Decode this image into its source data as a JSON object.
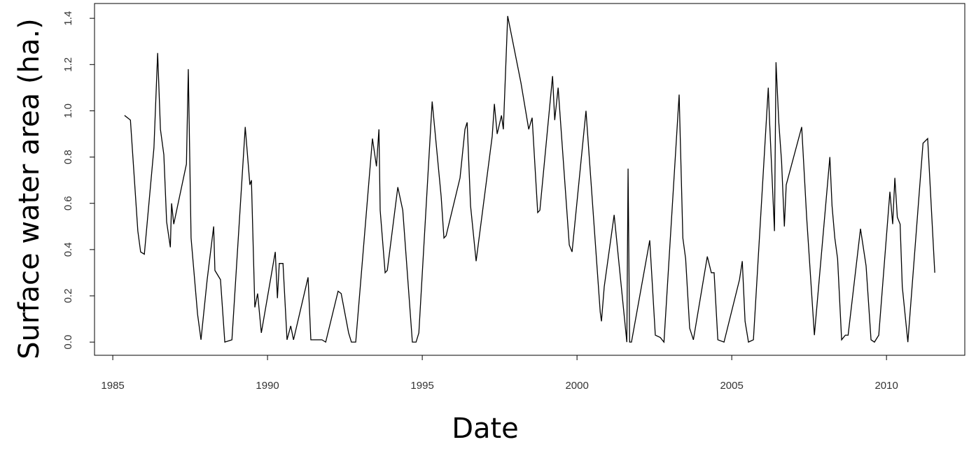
{
  "chart_data": {
    "type": "line",
    "x_label": "Date",
    "y_label": "Surface water area (ha.)",
    "xlim": [
      1984.41,
      2012.53
    ],
    "ylim": [
      -0.057,
      1.464
    ],
    "xticks": [
      1985,
      1990,
      1995,
      2000,
      2005,
      2010
    ],
    "yticks": [
      {
        "value": 0,
        "label": "0.0"
      },
      0.2,
      0.4,
      0.6,
      0.8,
      {
        "value": 1,
        "label": "1.0"
      },
      1.2,
      1.4
    ],
    "series": [
      {
        "color": "#000000",
        "x": [
          1985.38,
          1985.57,
          1985.81,
          1985.9,
          1986.02,
          1986.33,
          1986.45,
          1986.54,
          1986.65,
          1986.74,
          1986.86,
          1986.9,
          1986.97,
          1987.38,
          1987.44,
          1987.53,
          1987.74,
          1987.85,
          1988.05,
          1988.26,
          1988.3,
          1988.48,
          1988.62,
          1988.85,
          1989.28,
          1989.43,
          1989.48,
          1989.59,
          1989.68,
          1989.8,
          1990.25,
          1990.32,
          1990.38,
          1990.5,
          1990.63,
          1990.75,
          1990.84,
          1991.31,
          1991.4,
          1991.76,
          1991.88,
          1992.28,
          1992.38,
          1992.62,
          1992.71,
          1992.85,
          1993.39,
          1993.52,
          1993.6,
          1993.64,
          1993.8,
          1993.87,
          1994.21,
          1994.37,
          1994.68,
          1994.8,
          1994.89,
          1995.32,
          1995.61,
          1995.7,
          1995.77,
          1996.22,
          1996.38,
          1996.45,
          1996.56,
          1996.74,
          1997.26,
          1997.33,
          1997.42,
          1997.56,
          1997.62,
          1997.76,
          1998.19,
          1998.44,
          1998.55,
          1998.73,
          1998.8,
          1999.21,
          1999.28,
          1999.39,
          1999.75,
          1999.84,
          2000.29,
          2000.75,
          2000.79,
          2000.88,
          2001.2,
          2001.61,
          2001.65,
          2001.7,
          2001.76,
          2002.35,
          2002.53,
          2002.69,
          2002.81,
          2003.3,
          2003.42,
          2003.51,
          2003.64,
          2003.76,
          2004.21,
          2004.34,
          2004.43,
          2004.55,
          2004.75,
          2005.25,
          2005.34,
          2005.43,
          2005.54,
          2005.7,
          2006.18,
          2006.22,
          2006.38,
          2006.43,
          2006.52,
          2006.61,
          2006.7,
          2006.76,
          2007.26,
          2007.42,
          2007.67,
          2008.17,
          2008.24,
          2008.33,
          2008.42,
          2008.55,
          2008.67,
          2008.76,
          2009.16,
          2009.34,
          2009.5,
          2009.61,
          2009.75,
          2010.11,
          2010.2,
          2010.27,
          2010.35,
          2010.44,
          2010.51,
          2010.69,
          2011.18,
          2011.33,
          2011.56
        ],
        "values": [
          0.98,
          0.96,
          0.48,
          0.39,
          0.38,
          0.84,
          1.25,
          0.92,
          0.81,
          0.52,
          0.41,
          0.6,
          0.51,
          0.77,
          1.18,
          0.45,
          0.12,
          0.01,
          0.27,
          0.5,
          0.31,
          0.27,
          0.0,
          0.01,
          0.93,
          0.68,
          0.7,
          0.15,
          0.21,
          0.04,
          0.39,
          0.19,
          0.34,
          0.34,
          0.01,
          0.07,
          0.01,
          0.28,
          0.01,
          0.01,
          0.0,
          0.22,
          0.21,
          0.04,
          0.0,
          0.0,
          0.88,
          0.76,
          0.92,
          0.57,
          0.3,
          0.31,
          0.67,
          0.57,
          0.0,
          0.0,
          0.04,
          1.04,
          0.63,
          0.45,
          0.46,
          0.71,
          0.92,
          0.95,
          0.59,
          0.35,
          0.89,
          1.03,
          0.9,
          0.98,
          0.92,
          1.41,
          1.12,
          0.92,
          0.97,
          0.56,
          0.57,
          1.15,
          0.96,
          1.1,
          0.42,
          0.39,
          1.0,
          0.13,
          0.09,
          0.24,
          0.55,
          0.0,
          0.75,
          0.0,
          0.0,
          0.44,
          0.03,
          0.02,
          0.0,
          1.07,
          0.45,
          0.36,
          0.06,
          0.01,
          0.37,
          0.3,
          0.3,
          0.01,
          0.0,
          0.27,
          0.35,
          0.09,
          0.0,
          0.01,
          1.1,
          0.96,
          0.48,
          1.21,
          0.95,
          0.78,
          0.5,
          0.68,
          0.93,
          0.54,
          0.03,
          0.8,
          0.59,
          0.45,
          0.36,
          0.01,
          0.03,
          0.03,
          0.49,
          0.33,
          0.01,
          0.0,
          0.03,
          0.65,
          0.51,
          0.71,
          0.54,
          0.51,
          0.24,
          0.0,
          0.86,
          0.88,
          0.3
        ]
      }
    ]
  }
}
